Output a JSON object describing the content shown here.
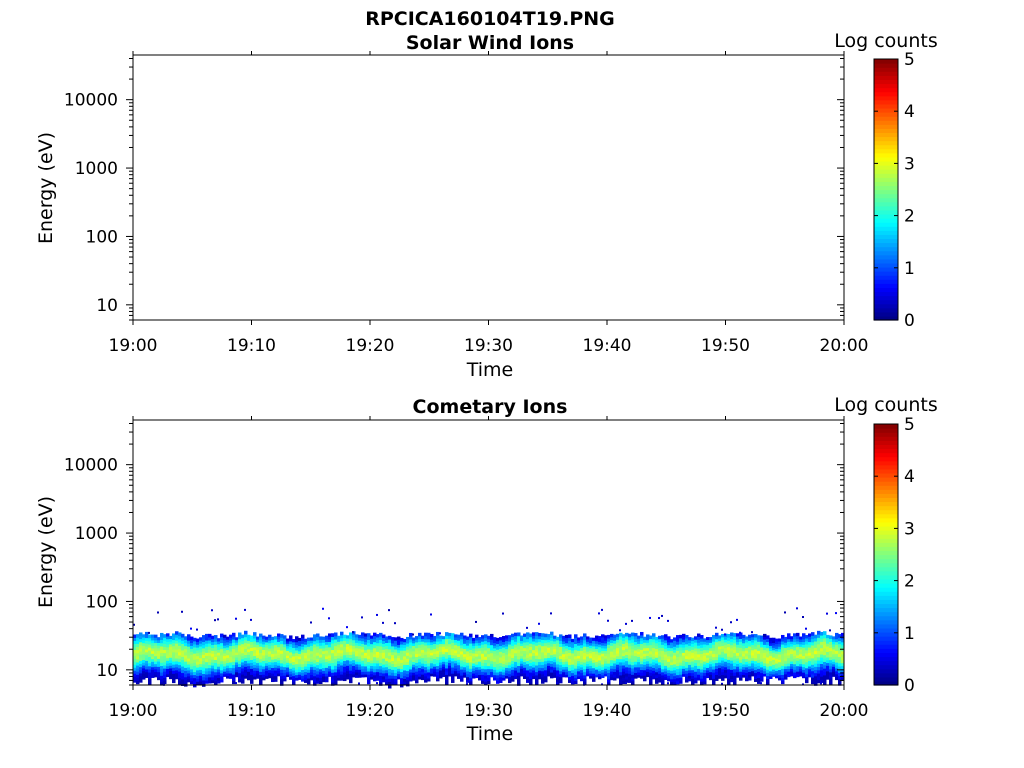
{
  "figure": {
    "title": "RPCICA160104T19.PNG"
  },
  "chart_data": [
    {
      "type": "heatmap",
      "title": "Solar Wind Ions",
      "xlabel": "Time",
      "ylabel": "Energy (eV)",
      "x_ticks": [
        "19:00",
        "19:10",
        "19:20",
        "19:30",
        "19:40",
        "19:50",
        "20:00"
      ],
      "y_scale": "log",
      "y_ticks": [
        "10",
        "100",
        "1000",
        "10000"
      ],
      "ylim": [
        6,
        45000
      ],
      "colorbar": {
        "label": "Log counts",
        "range": [
          0,
          5
        ],
        "ticks": [
          "0",
          "1",
          "2",
          "3",
          "4",
          "5"
        ],
        "colormap": "jet"
      },
      "data": "empty"
    },
    {
      "type": "heatmap",
      "title": "Cometary Ions",
      "xlabel": "Time",
      "ylabel": "Energy (eV)",
      "x_ticks": [
        "19:00",
        "19:10",
        "19:20",
        "19:30",
        "19:40",
        "19:50",
        "20:00"
      ],
      "y_scale": "log",
      "y_ticks": [
        "10",
        "100",
        "1000",
        "10000"
      ],
      "ylim": [
        6,
        45000
      ],
      "colorbar": {
        "label": "Log counts",
        "range": [
          0,
          5
        ],
        "ticks": [
          "0",
          "1",
          "2",
          "3",
          "4",
          "5"
        ],
        "colormap": "jet"
      },
      "band": {
        "energy_low_eV": 8,
        "energy_high_eV": 30,
        "peak_energy_eV": 17,
        "peak_log_counts": 2.8,
        "sparse_counts_up_to_eV": 80
      }
    }
  ]
}
